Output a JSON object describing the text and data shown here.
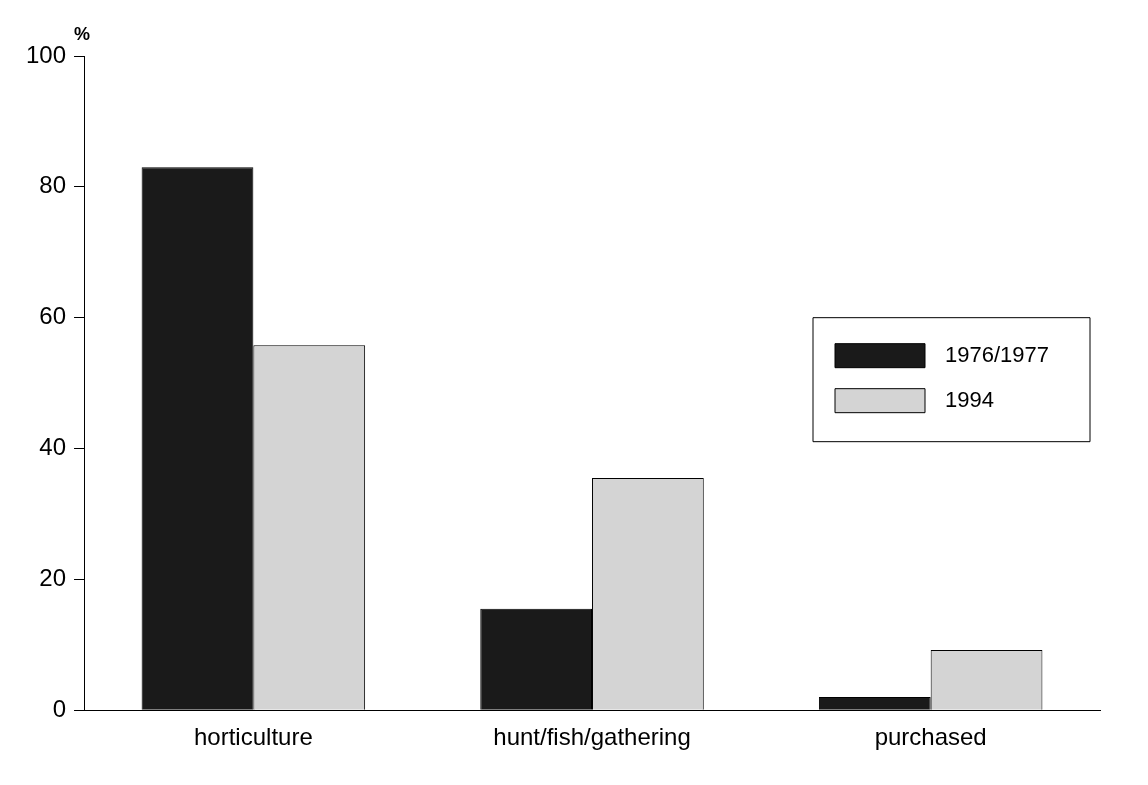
{
  "chart_data": {
    "type": "bar",
    "ylabel": "%",
    "categories": [
      "horticulture",
      "hunt/fish/gathering",
      "purchased"
    ],
    "series": [
      {
        "name": "1976/1977",
        "color": "#1a1a1a",
        "values": [
          83,
          15.5,
          2
        ]
      },
      {
        "name": "1994",
        "color": "#d4d4d4",
        "values": [
          55.8,
          35.5,
          9.2
        ]
      }
    ],
    "ylim": [
      0,
      100
    ],
    "yticks": [
      0,
      20,
      40,
      60,
      80,
      100
    ],
    "grid": false,
    "legend": "right"
  }
}
